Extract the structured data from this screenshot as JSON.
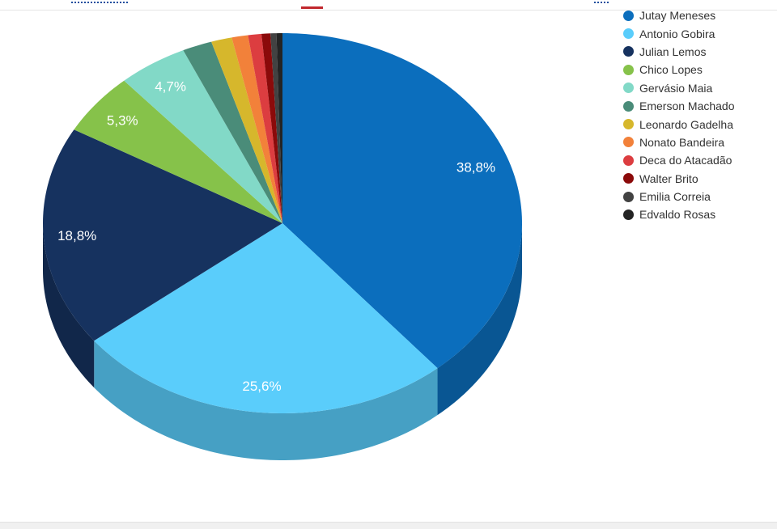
{
  "chart_data": {
    "type": "pie",
    "series": [
      {
        "name": "Jutay Meneses",
        "value": 38.8,
        "label": "38,8%",
        "color": "#0b6ebd"
      },
      {
        "name": "Antonio Gobira",
        "value": 25.6,
        "label": "25,6%",
        "color": "#5acdfb"
      },
      {
        "name": "Julian Lemos",
        "value": 18.8,
        "label": "18,8%",
        "color": "#16325f"
      },
      {
        "name": "Chico Lopes",
        "value": 5.3,
        "label": "5,3%",
        "color": "#86c24a"
      },
      {
        "name": "Gervásio Maia",
        "value": 4.7,
        "label": "4,7%",
        "color": "#82d9c7"
      },
      {
        "name": "Emerson Machado",
        "value": 2.0,
        "label": "",
        "color": "#4a8c79"
      },
      {
        "name": "Leonardo Gadelha",
        "value": 1.4,
        "label": "",
        "color": "#d6b72c"
      },
      {
        "name": "Nonato Bandeira",
        "value": 1.1,
        "label": "",
        "color": "#f2813a"
      },
      {
        "name": "Deca do Atacadão",
        "value": 0.9,
        "label": "",
        "color": "#dc3d40"
      },
      {
        "name": "Walter Brito",
        "value": 0.6,
        "label": "",
        "color": "#8b0a0a"
      },
      {
        "name": "Emilia Correia",
        "value": 0.4,
        "label": "",
        "color": "#424242"
      },
      {
        "name": "Edvaldo Rosas",
        "value": 0.4,
        "label": "",
        "color": "#242424"
      }
    ],
    "three_d": true,
    "legend_position": "top-right",
    "title": ""
  },
  "colors": {
    "top_accent": "#c1272d",
    "top_text": "#1f4e9e"
  }
}
